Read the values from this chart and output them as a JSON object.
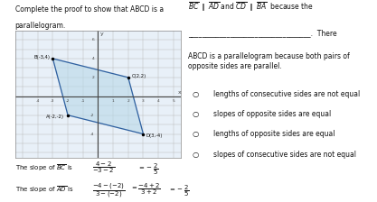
{
  "title_left_line1": "Complete the proof to show that ABCD is a",
  "title_left_line2": "parallelogram.",
  "title_right_top": "$\\overline{BC}$ $\\parallel$ $\\overline{AD}$ and $\\overline{CD}$ $\\parallel$ $\\overline{BA}$  because the",
  "title_right_blank": "___________________________________.  There",
  "title_right_body": "ABCD is a parallelogram because both pairs of\nopposite sides are parallel.",
  "radio_options": [
    "lengths of consecutive sides are not equal",
    "slopes of opposite sides are equal",
    "lengths of opposite sides are equal",
    "slopes of consecutive sides are not equal"
  ],
  "slope_bc_prefix": "The slope of $\\overline{BC}$ is ",
  "slope_bc_frac": "$\\dfrac{4-2}{-3-2}$",
  "slope_bc_suffix": "$= -\\dfrac{2}{5}$",
  "slope_ad_prefix": "The slope of $\\overline{AD}$ is ",
  "slope_ad_frac": "$\\dfrac{-4-(-2)}{3-(-2)}$",
  "slope_ad_mid": "$= \\dfrac{-4+2}{3+2}$",
  "slope_ad_suffix": "$= -\\dfrac{2}{5}$",
  "points": {
    "A": [
      -2,
      -2
    ],
    "B": [
      -3,
      4
    ],
    "C": [
      2,
      2
    ],
    "D": [
      3,
      -4
    ]
  },
  "label_texts": {
    "B": "B(-3,4)",
    "C": "C(2,2)",
    "A": "A(-2,-2)",
    "D": "D(3,-4)"
  },
  "poly_color": "#b8d8e8",
  "poly_alpha": 0.6,
  "poly_edge_color": "#3060a0",
  "grid_color": "#bbbbbb",
  "axis_color": "#444444",
  "bg_color": "#ffffff",
  "text_color": "#111111",
  "graph_bg": "#e8f0f8",
  "xlim": [
    -5.5,
    5.5
  ],
  "ylim": [
    -6.5,
    7.0
  ]
}
